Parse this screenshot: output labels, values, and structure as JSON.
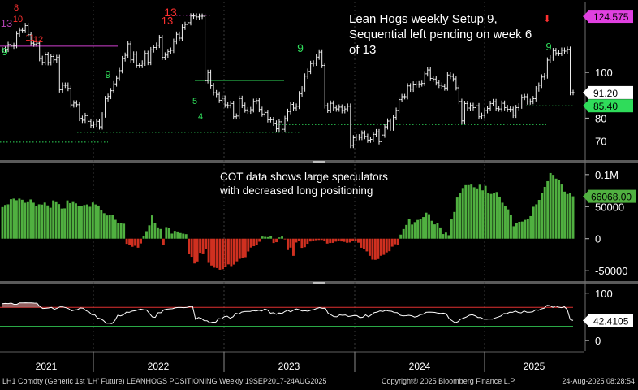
{
  "chart_data": [
    {
      "type": "ohlc",
      "title": "Lean Hogs weekly Setup 9, Sequential left pending on week 6 of 13",
      "x_axis": {
        "ticks": [
          "2021",
          "2022",
          "2023",
          "2024",
          "2025"
        ]
      },
      "y_axis": {
        "ticks": [
          70,
          80,
          90,
          100
        ],
        "tick_labels": [
          "70",
          "80",
          "",
          "100"
        ],
        "range": [
          62,
          131
        ]
      },
      "price_tags": [
        {
          "label": "124.575",
          "value": 124.575,
          "color": "#e040e0"
        },
        {
          "label": "91.20",
          "value": 91.2,
          "color": "#ffffff"
        },
        {
          "label": "85.40",
          "value": 85.4,
          "color": "#2fdc5a"
        }
      ],
      "td_labels_red": [
        "8",
        "13",
        "10",
        "11",
        "12",
        "13",
        "13"
      ],
      "td_labels_green": [
        "9",
        "9",
        "9",
        "9",
        "5",
        "4"
      ],
      "weekly_closes": [
        109.8,
        110.1,
        112.2,
        111.5,
        111.8,
        116.9,
        118.5,
        118.4,
        120.5,
        116.5,
        112.8,
        112.4,
        112.8,
        106.1,
        104.4,
        107.7,
        104.3,
        107.0,
        105.5,
        106.5,
        92.4,
        94.4,
        94.4,
        93.0,
        85.8,
        86.6,
        85.9,
        79.9,
        79.1,
        81.1,
        78.6,
        76.8,
        77.4,
        78.6,
        76.2,
        81.4,
        88.5,
        89.5,
        92.0,
        95.0,
        97.5,
        100.8,
        106.0,
        107.5,
        112.5,
        105.5,
        108.0,
        103.1,
        103.1,
        104.1,
        108.3,
        104.4,
        109.9,
        110.9,
        111.9,
        115.2,
        106.6,
        107.6,
        109.1,
        109.7,
        113.6,
        116.7,
        115.0,
        119.8,
        121.0,
        121.8,
        124.7,
        124.7,
        124.3,
        124.6,
        124.6,
        96.4,
        100.0,
        94.2,
        91.1,
        90.4,
        87.8,
        88.7,
        85.8,
        85.5,
        86.4,
        80.6,
        80.9,
        88.6,
        85.6,
        83.6,
        83.1,
        83.7,
        87.3,
        87.7,
        83.8,
        81.8,
        82.5,
        79.3,
        79.3,
        77.8,
        75.3,
        78.4,
        75.1,
        79.8,
        82.9,
        86.0,
        84.4,
        85.2,
        90.6,
        92.8,
        98.4,
        100.5,
        103.9,
        104.1,
        106.7,
        108.9,
        103.1,
        85.4,
        83.5,
        86.5,
        84.5,
        84.0,
        84.8,
        83.3,
        84.0,
        85.2,
        68.1,
        71.4,
        71.8,
        71.6,
        73.4,
        72.0,
        70.4,
        70.7,
        72.9,
        74.0,
        69.7,
        72.6,
        76.2,
        78.7,
        75.7,
        80.3,
        83.4,
        88.1,
        89.4,
        89.4,
        94.1,
        92.7,
        94.9,
        94.6,
        95.0,
        95.2,
        99.4,
        101.1,
        97.4,
        97.1,
        95.5,
        94.4,
        93.9,
        93.2,
        98.9,
        98.3,
        97.2,
        93.3,
        87.3,
        78.8,
        86.4,
        84.4,
        85.5,
        84.6,
        85.4,
        80.6,
        81.2,
        83.3,
        84.2,
        86.4,
        87.2,
        84.2,
        84.0,
        86.5,
        84.6,
        83.9,
        83.8,
        81.3,
        84.6,
        85.3,
        89.1,
        89.4,
        87.1,
        87.3,
        88.5,
        92.8,
        94.4,
        98.0,
        98.5,
        105.4,
        106.3,
        109.5,
        108.5,
        108.4,
        109.7,
        109.3,
        110.1,
        91.2,
        91.2
      ],
      "levels": [
        {
          "label": "pink setup line",
          "value": 111.5,
          "color": "#d040d0",
          "style": "solid"
        },
        {
          "label": "pink dotted",
          "value": 125.0,
          "color": "#d040d0",
          "style": "dotted"
        },
        {
          "label": "green dotted 2021",
          "value": 69.5,
          "color": "#2fdc5a",
          "style": "dotted"
        },
        {
          "label": "green dotted 2022",
          "value": 73.8,
          "color": "#2fdc5a",
          "style": "dotted"
        },
        {
          "label": "green dotted 2023",
          "value": 77.2,
          "color": "#2fdc5a",
          "style": "dotted"
        },
        {
          "label": "green dotted 2025",
          "value": 85.4,
          "color": "#2fdc5a",
          "style": "dotted"
        },
        {
          "label": "green solid 2022",
          "value": 96.5,
          "color": "#2fdc5a",
          "style": "solid"
        }
      ]
    },
    {
      "type": "bar",
      "title": "COT data shows large speculators with decreased long positioning",
      "y_axis": {
        "ticks": [
          100000,
          50000,
          0,
          -50000
        ],
        "tick_labels": [
          "0.1M",
          "50000",
          "0",
          "-50000"
        ],
        "range": [
          -65000,
          115000
        ]
      },
      "last_value_label": "66068.00",
      "last_value": 66068,
      "positive_color": "#50b040",
      "negative_color": "#d03020",
      "values": [
        49300,
        52600,
        53600,
        61600,
        62500,
        60000,
        62500,
        60700,
        56000,
        58200,
        61200,
        56100,
        51000,
        53600,
        53200,
        56300,
        51900,
        48300,
        59700,
        58200,
        54000,
        47000,
        47300,
        59700,
        55400,
        58400,
        55100,
        50700,
        51300,
        52500,
        53400,
        49800,
        56400,
        53400,
        51700,
        44800,
        39800,
        36200,
        37100,
        36500,
        29400,
        24000,
        24700,
        23300,
        -8100,
        -10000,
        -12700,
        -11100,
        -14100,
        -7500,
        4100,
        11700,
        20800,
        36300,
        23900,
        17600,
        15100,
        -10300,
        18100,
        16900,
        7900,
        12100,
        11200,
        8800,
        7800,
        7000,
        -24400,
        -28300,
        -38700,
        -35600,
        -22000,
        -23100,
        -15600,
        -37800,
        -41900,
        -45300,
        -45900,
        -48400,
        -47600,
        -43700,
        -40100,
        -42800,
        -40400,
        -35400,
        -31500,
        -29700,
        -28900,
        -20000,
        -13900,
        -11800,
        -9500,
        -4800,
        3300,
        2800,
        2400,
        4000,
        -6800,
        -5500,
        1900,
        3300,
        -1100,
        -17800,
        -14000,
        -26800,
        -6000,
        -3100,
        -14400,
        -13300,
        -8000,
        -4400,
        -4000,
        -2400,
        -2000,
        -1900,
        -3000,
        -7700,
        -6800,
        -6600,
        -4600,
        -4000,
        -4300,
        -5000,
        -6400,
        -6000,
        -3800,
        -3300,
        -6300,
        -14200,
        -16000,
        -19900,
        -26800,
        -32700,
        -33000,
        -31800,
        -26700,
        -25200,
        -21500,
        -19600,
        -12500,
        -8700,
        -9200,
        6300,
        15000,
        21400,
        30200,
        22000,
        25800,
        29200,
        30800,
        33800,
        40600,
        38200,
        27900,
        22300,
        24800,
        17500,
        7200,
        9500,
        5400,
        30000,
        41700,
        64200,
        71800,
        79100,
        83500,
        83600,
        84400,
        80300,
        78500,
        84200,
        75400,
        82400,
        71700,
        69800,
        70800,
        72800,
        65600,
        56100,
        50900,
        45700,
        37700,
        19400,
        24000,
        26300,
        26700,
        29300,
        31100,
        35200,
        49800,
        53600,
        60500,
        71700,
        80800,
        89700,
        102400,
        99600,
        93700,
        91000,
        84500,
        73400,
        69700,
        71600,
        66100
      ]
    },
    {
      "type": "line",
      "y_axis": {
        "ticks": [
          100,
          0
        ],
        "tick_labels": [
          "100",
          "0"
        ],
        "range": [
          -22,
          115
        ]
      },
      "last_value_label": "42.4105",
      "last_value": 42.4105,
      "reference_lines": [
        {
          "value": 70,
          "color": "#e03030"
        },
        {
          "value": 30,
          "color": "#30c050"
        }
      ],
      "line_color": "#ffffff",
      "values": [
        77.6,
        78.4,
        78.0,
        79.0,
        76.4,
        76.4,
        79.5,
        79.5,
        79.8,
        79.3,
        79.6,
        79.1,
        78.8,
        71.5,
        67.7,
        68.0,
        68.7,
        70.0,
        66.0,
        68.3,
        71.1,
        71.0,
        69.3,
        67.3,
        62.8,
        64.4,
        65.2,
        68.7,
        68.2,
        63.1,
        60.6,
        54.7,
        54.6,
        47.6,
        46.2,
        42.5,
        36.8,
        36.5,
        35.8,
        42.1,
        53.1,
        52.2,
        54.3,
        60.0,
        59.5,
        62.0,
        62.9,
        64.6,
        66.4,
        65.0,
        64.7,
        57.2,
        49.9,
        48.9,
        58.7,
        58.6,
        64.9,
        66.2,
        66.8,
        67.2,
        69.1,
        69.8,
        69.8,
        69.4,
        70.1,
        71.5,
        72.0,
        44.6,
        48.5,
        47.0,
        42.1,
        41.9,
        37.4,
        39.0,
        38.6,
        46.2,
        45.6,
        50.5,
        51.4,
        47.2,
        49.9,
        57.4,
        55.8,
        60.1,
        61.2,
        61.6,
        61.6,
        63.3,
        62.5,
        64.0,
        62.4,
        66.6,
        64.7,
        57.7,
        58.6,
        55.4,
        58.2,
        57.2,
        61.2,
        63.9,
        60.5,
        64.3,
        66.7,
        65.0,
        62.5,
        62.9,
        61.9,
        64.3,
        65.4,
        67.8,
        69.7,
        68.1,
        68.5,
        57.6,
        54.2,
        50.6,
        50.1,
        54.2,
        53.4,
        54.0,
        50.7,
        51.6,
        53.0,
        52.7,
        48.6,
        49.1,
        54.2,
        50.1,
        54.5,
        59.0,
        60.1,
        62.6,
        61.5,
        63.8,
        62.2,
        61.9,
        59.1,
        58.9,
        53.5,
        52.0,
        52.5,
        53.3,
        52.3,
        49.5,
        51.0,
        54.5,
        55.8,
        59.6,
        60.0,
        59.9,
        59.4,
        57.9,
        57.3,
        57.8,
        56.4,
        46.4,
        42.1,
        37.8,
        39.6,
        45.2,
        47.4,
        49.8,
        53.3,
        54.5,
        52.3,
        48.8,
        48.7,
        45.2,
        45.0,
        45.6,
        45.3,
        47.7,
        49.6,
        51.9,
        56.9,
        56.7,
        59.7,
        59.6,
        62.2,
        59.4,
        58.3,
        62.4,
        59.9,
        59.7,
        60.6,
        64.8,
        63.9,
        66.9,
        68.5,
        74.2,
        73.5,
        70.1,
        73.1,
        70.4,
        69.5,
        71.4,
        65.4,
        44.7,
        42.4
      ]
    }
  ],
  "annotations": {
    "title": "Lean Hogs weekly Setup 9, Sequential left pending on week 6 of 13",
    "cot": "COT data shows large speculators with decreased long positioning"
  },
  "footer": {
    "left": "LH1 Comdty (Generic 1st 'LH' Future) LEANHOGS POSITIONING  Weekly 19SEP2017-24AUG2025",
    "middle": "Copyright® 2025 Bloomberg Finance L.P.",
    "right": "24-Aug-2025 08:28:54"
  }
}
